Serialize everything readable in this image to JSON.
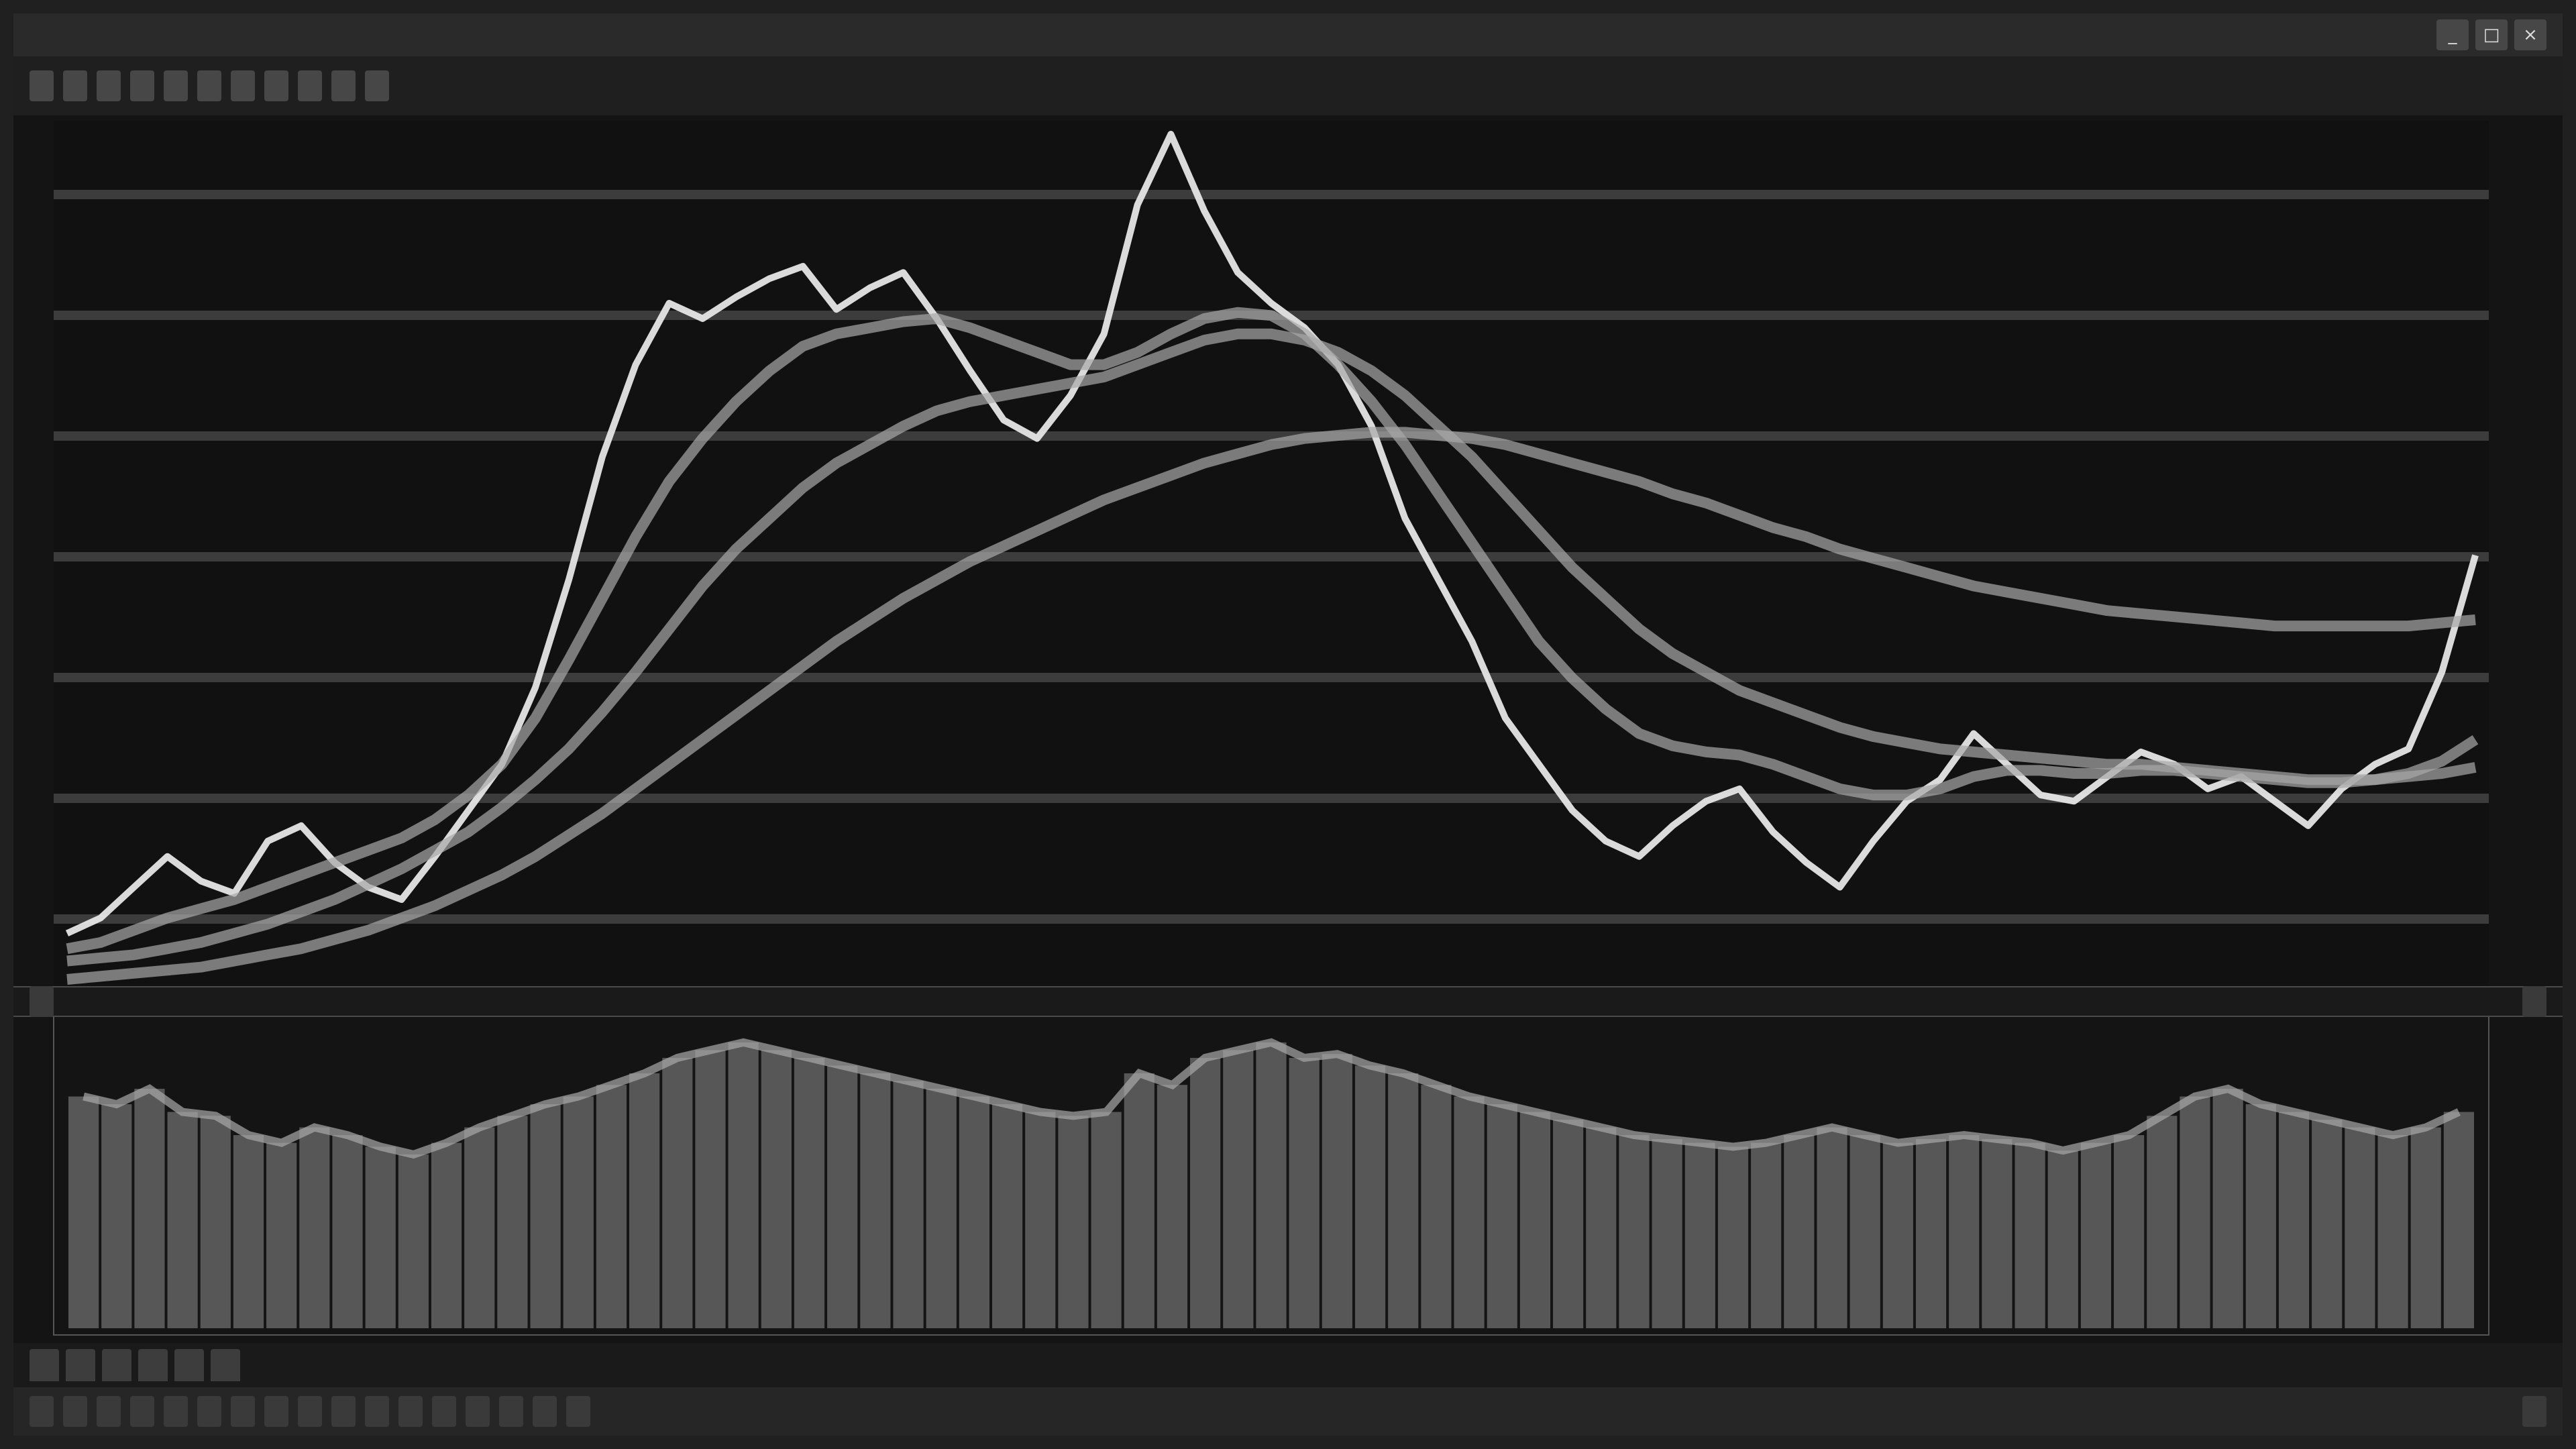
{
  "window": {
    "title": "",
    "controls": [
      "_",
      "□",
      "×"
    ]
  },
  "toolbar": {
    "items": [
      "",
      "",
      "",
      "",
      "",
      "",
      "",
      "",
      "",
      "",
      ""
    ]
  },
  "price_panel": {
    "legend": ""
  },
  "volume_panel": {
    "legend": "",
    "value": ""
  },
  "tabs": [
    "",
    "",
    "",
    "",
    "",
    ""
  ],
  "status": {
    "items": [
      "",
      "",
      "",
      "",
      "",
      "",
      "",
      "",
      "",
      "",
      "",
      "",
      "",
      "",
      "",
      "",
      ""
    ],
    "right": ""
  },
  "colors": {
    "background": "#141414",
    "grid": "#3c3c3c",
    "candles": "#e6e6e6",
    "moving_averages": "#a8a8a8",
    "volume_bars": "#8e8e8e"
  },
  "chart_data": {
    "type": "line",
    "description_series": [
      {
        "values": [
          505,
          510,
          520,
          530,
          522,
          518,
          535,
          540,
          528,
          520,
          516,
          530,
          545,
          560,
          585,
          620,
          660,
          690,
          710,
          705,
          712,
          718,
          722,
          708,
          715,
          720,
          705,
          688,
          672,
          666,
          680,
          700,
          742,
          765,
          740,
          720,
          710,
          702,
          690,
          670,
          640,
          620,
          600,
          575,
          560,
          545,
          535,
          530,
          540,
          548,
          552,
          538,
          528,
          520,
          535,
          548,
          555,
          570,
          560,
          550,
          548,
          556,
          564,
          560,
          552,
          556,
          548,
          540,
          552,
          560,
          565,
          590,
          628
        ]
      },
      {
        "values": [
          500,
          502,
          506,
          510,
          513,
          516,
          520,
          524,
          528,
          532,
          536,
          542,
          550,
          560,
          575,
          594,
          614,
          634,
          652,
          666,
          678,
          688,
          696,
          700,
          702,
          704,
          705,
          702,
          698,
          694,
          690,
          690,
          694,
          700,
          705,
          707,
          706,
          700,
          690,
          678,
          664,
          648,
          632,
          616,
          600,
          588,
          578,
          570,
          566,
          564,
          563,
          560,
          556,
          552,
          550,
          550,
          552,
          556,
          558,
          558,
          557,
          557,
          558,
          558,
          557,
          556,
          555,
          554,
          554,
          555,
          557,
          561,
          568
        ]
      },
      {
        "values": [
          496,
          497,
          498,
          500,
          502,
          505,
          508,
          512,
          516,
          521,
          526,
          532,
          538,
          546,
          555,
          565,
          577,
          590,
          604,
          618,
          630,
          640,
          650,
          658,
          664,
          670,
          675,
          678,
          680,
          682,
          684,
          686,
          690,
          694,
          698,
          700,
          700,
          698,
          694,
          688,
          680,
          670,
          660,
          648,
          636,
          624,
          614,
          604,
          596,
          590,
          584,
          580,
          576,
          572,
          569,
          567,
          565,
          564,
          563,
          562,
          561,
          560,
          560,
          559,
          558,
          557,
          556,
          555,
          555,
          555,
          556,
          557,
          559
        ]
      },
      {
        "values": [
          490,
          491,
          492,
          493,
          494,
          496,
          498,
          500,
          503,
          506,
          510,
          514,
          519,
          524,
          530,
          537,
          544,
          552,
          560,
          568,
          576,
          584,
          592,
          600,
          607,
          614,
          620,
          626,
          631,
          636,
          641,
          646,
          650,
          654,
          658,
          661,
          664,
          666,
          667,
          668,
          668,
          667,
          666,
          664,
          661,
          658,
          655,
          652,
          648,
          645,
          641,
          637,
          634,
          630,
          627,
          624,
          621,
          618,
          616,
          614,
          612,
          610,
          609,
          608,
          607,
          606,
          605,
          605,
          605,
          605,
          605,
          606,
          607
        ]
      }
    ],
    "volume": [
      [
        60,
        58,
        62,
        56,
        55,
        50,
        48,
        52,
        50,
        47,
        45,
        48,
        52,
        55,
        58,
        60,
        63,
        66,
        70,
        72,
        74,
        72,
        70,
        68,
        66,
        64,
        62,
        60,
        58,
        56,
        55,
        56,
        66,
        63,
        70,
        72,
        74,
        70,
        71,
        68,
        66,
        63,
        60,
        58,
        56,
        54,
        52,
        50,
        49,
        48,
        47,
        48,
        50,
        52,
        50,
        48,
        49,
        50,
        49,
        48,
        46,
        48,
        50,
        55,
        60,
        62,
        58,
        56,
        54,
        52,
        50,
        52,
        56
      ]
    ]
  }
}
